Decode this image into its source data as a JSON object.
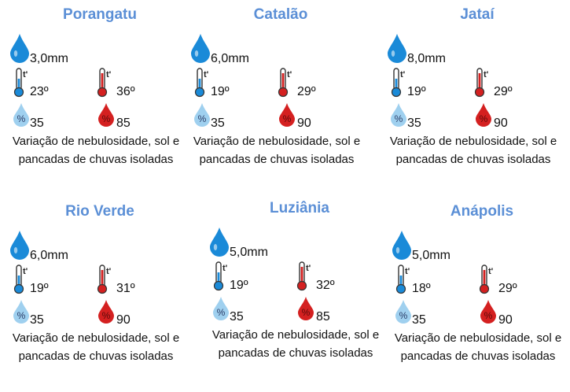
{
  "colors": {
    "city_title": "#5b8fd6",
    "rain_drop": "#1a8ad8",
    "temp_min": "#1a8ad8",
    "temp_max": "#d42020",
    "humidity_min": "#9fd0ef",
    "humidity_max": "#d42020"
  },
  "icons": {
    "rain": "water-drop-icon",
    "temp_min": "thermometer-cold-icon",
    "temp_max": "thermometer-hot-icon",
    "humidity_min": "humidity-drop-light-icon",
    "humidity_max": "humidity-drop-red-icon"
  },
  "icon_glyphs": {
    "temp": "t'",
    "humidity": "%"
  },
  "cities": [
    {
      "name": "Porangatu",
      "rain": "3,0mm",
      "temp_min": "23º",
      "temp_max": "36º",
      "humidity_min": "35",
      "humidity_max": "85",
      "description": "Variação de nebulosidade, sol e pancadas de chuvas isoladas"
    },
    {
      "name": "Catalão",
      "rain": "6,0mm",
      "temp_min": "19º",
      "temp_max": "29º",
      "humidity_min": "35",
      "humidity_max": "90",
      "description": "Variação de nebulosidade, sol e pancadas de chuvas isoladas"
    },
    {
      "name": "Jataí",
      "rain": "8,0mm",
      "temp_min": "19º",
      "temp_max": "29º",
      "humidity_min": "35",
      "humidity_max": "90",
      "description": "Variação de nebulosidade, sol e pancadas de chuvas isoladas"
    },
    {
      "name": "Rio Verde",
      "rain": "6,0mm",
      "temp_min": "19º",
      "temp_max": "31º",
      "humidity_min": "35",
      "humidity_max": "90",
      "description": "Variação de nebulosidade, sol e pancadas de chuvas isoladas"
    },
    {
      "name": "Luziânia",
      "rain": "5,0mm",
      "temp_min": "19º",
      "temp_max": "32º",
      "humidity_min": "35",
      "humidity_max": "85",
      "description": "Variação de nebulosidade, sol e pancadas de chuvas isoladas"
    },
    {
      "name": "Anápolis",
      "rain": "5,0mm",
      "temp_min": "18º",
      "temp_max": "29º",
      "humidity_min": "35",
      "humidity_max": "90",
      "description": "Variação de nebulosidade, sol e pancadas de chuvas isoladas"
    }
  ]
}
